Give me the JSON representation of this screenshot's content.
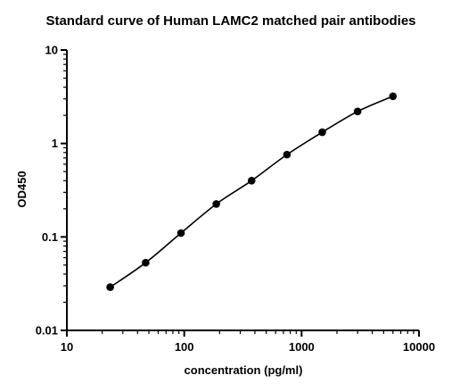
{
  "chart_data": {
    "type": "scatter",
    "title": "Standard curve of Human LAMC2 matched pair antibodies",
    "xlabel": "concentration (pg/ml)",
    "ylabel": "OD450",
    "x_scale": "log",
    "y_scale": "log",
    "xlim": [
      10,
      10000
    ],
    "ylim": [
      0.01,
      10
    ],
    "x_ticks": [
      10,
      100,
      1000,
      10000
    ],
    "x_tick_labels": [
      "10",
      "100",
      "1000",
      "10000"
    ],
    "y_ticks": [
      0.01,
      0.1,
      1,
      10
    ],
    "y_tick_labels": [
      "0.01",
      "0.1",
      "1",
      "10"
    ],
    "grid": false,
    "legend": "none",
    "series": [
      {
        "x": [
          23.4,
          46.9,
          93.8,
          187.5,
          375,
          750,
          1500,
          3000,
          6000
        ],
        "y": [
          0.029,
          0.053,
          0.11,
          0.225,
          0.4,
          0.76,
          1.32,
          2.2,
          3.2
        ],
        "color": "#000000",
        "fit_curve": true
      }
    ]
  }
}
